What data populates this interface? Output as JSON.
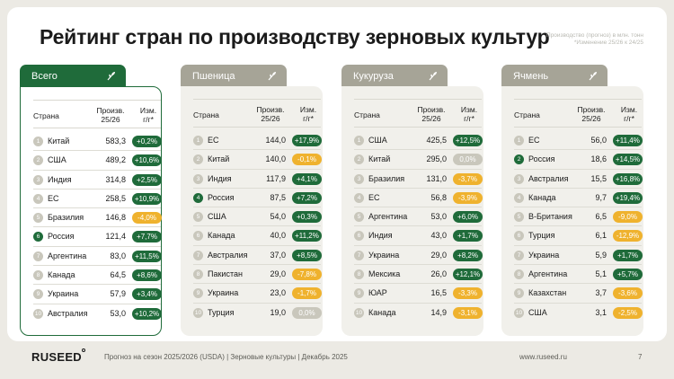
{
  "slide": {
    "title": "Рейтинг стран по производству зерновых культур",
    "note_line1": "Производство (прогноз) в млн. тонн",
    "note_line2": "*Изменение 25/26 к 24/25"
  },
  "headers": {
    "country": "Страна",
    "prod_1": "Произв.",
    "prod_2": "25/26",
    "chg_1": "Изм.",
    "chg_2": "г/г*"
  },
  "colors": {
    "accent": "#1f6b3a",
    "tab_inactive": "#a6a497",
    "negative": "#efb22e",
    "neutral": "#c9c7bc"
  },
  "tables": [
    {
      "name": "Всего",
      "icon": "wheat-icon",
      "active": true,
      "rows": [
        {
          "rank": "1",
          "country": "Китай",
          "value": "583,3",
          "change": "+0,2%",
          "sign": "pos",
          "highlight": false
        },
        {
          "rank": "2",
          "country": "США",
          "value": "489,2",
          "change": "+10,6%",
          "sign": "pos",
          "highlight": false
        },
        {
          "rank": "3",
          "country": "Индия",
          "value": "314,8",
          "change": "+2,5%",
          "sign": "pos",
          "highlight": false
        },
        {
          "rank": "4",
          "country": "ЕС",
          "value": "258,5",
          "change": "+10,9%",
          "sign": "pos",
          "highlight": false
        },
        {
          "rank": "5",
          "country": "Бразилия",
          "value": "146,8",
          "change": "-4,0%",
          "sign": "neg",
          "highlight": false
        },
        {
          "rank": "6",
          "country": "Россия",
          "value": "121,4",
          "change": "+7,7%",
          "sign": "pos",
          "highlight": true
        },
        {
          "rank": "7",
          "country": "Аргентина",
          "value": "83,0",
          "change": "+11,5%",
          "sign": "pos",
          "highlight": false
        },
        {
          "rank": "8",
          "country": "Канада",
          "value": "64,5",
          "change": "+8,6%",
          "sign": "pos",
          "highlight": false
        },
        {
          "rank": "9",
          "country": "Украина",
          "value": "57,9",
          "change": "+3,4%",
          "sign": "pos",
          "highlight": false
        },
        {
          "rank": "10",
          "country": "Австралия",
          "value": "53,0",
          "change": "+10,2%",
          "sign": "pos",
          "highlight": false
        }
      ]
    },
    {
      "name": "Пшеница",
      "icon": "wheat-icon",
      "active": false,
      "rows": [
        {
          "rank": "1",
          "country": "ЕС",
          "value": "144,0",
          "change": "+17,9%",
          "sign": "pos",
          "highlight": false
        },
        {
          "rank": "2",
          "country": "Китай",
          "value": "140,0",
          "change": "-0,1%",
          "sign": "neg",
          "highlight": false
        },
        {
          "rank": "3",
          "country": "Индия",
          "value": "117,9",
          "change": "+4,1%",
          "sign": "pos",
          "highlight": false
        },
        {
          "rank": "4",
          "country": "Россия",
          "value": "87,5",
          "change": "+7,2%",
          "sign": "pos",
          "highlight": true
        },
        {
          "rank": "5",
          "country": "США",
          "value": "54,0",
          "change": "+0,3%",
          "sign": "pos",
          "highlight": false
        },
        {
          "rank": "6",
          "country": "Канада",
          "value": "40,0",
          "change": "+11,2%",
          "sign": "pos",
          "highlight": false
        },
        {
          "rank": "7",
          "country": "Австралия",
          "value": "37,0",
          "change": "+8,5%",
          "sign": "pos",
          "highlight": false
        },
        {
          "rank": "8",
          "country": "Пакистан",
          "value": "29,0",
          "change": "-7,8%",
          "sign": "neg",
          "highlight": false
        },
        {
          "rank": "9",
          "country": "Украина",
          "value": "23,0",
          "change": "-1,7%",
          "sign": "neg",
          "highlight": false
        },
        {
          "rank": "10",
          "country": "Турция",
          "value": "19,0",
          "change": "0,0%",
          "sign": "zero",
          "highlight": false
        }
      ]
    },
    {
      "name": "Кукуруза",
      "icon": "wheat-icon",
      "active": false,
      "rows": [
        {
          "rank": "1",
          "country": "США",
          "value": "425,5",
          "change": "+12,5%",
          "sign": "pos",
          "highlight": false
        },
        {
          "rank": "2",
          "country": "Китай",
          "value": "295,0",
          "change": "0,0%",
          "sign": "zero",
          "highlight": false
        },
        {
          "rank": "3",
          "country": "Бразилия",
          "value": "131,0",
          "change": "-3,7%",
          "sign": "neg",
          "highlight": false
        },
        {
          "rank": "4",
          "country": "ЕС",
          "value": "56,8",
          "change": "-3,9%",
          "sign": "neg",
          "highlight": false
        },
        {
          "rank": "5",
          "country": "Аргентина",
          "value": "53,0",
          "change": "+6,0%",
          "sign": "pos",
          "highlight": false
        },
        {
          "rank": "6",
          "country": "Индия",
          "value": "43,0",
          "change": "+1,7%",
          "sign": "pos",
          "highlight": false
        },
        {
          "rank": "7",
          "country": "Украина",
          "value": "29,0",
          "change": "+8,2%",
          "sign": "pos",
          "highlight": false
        },
        {
          "rank": "8",
          "country": "Мексика",
          "value": "26,0",
          "change": "+12,1%",
          "sign": "pos",
          "highlight": false
        },
        {
          "rank": "9",
          "country": "ЮАР",
          "value": "16,5",
          "change": "-3,3%",
          "sign": "neg",
          "highlight": false
        },
        {
          "rank": "10",
          "country": "Канада",
          "value": "14,9",
          "change": "-3,1%",
          "sign": "neg",
          "highlight": false
        }
      ]
    },
    {
      "name": "Ячмень",
      "icon": "wheat-icon",
      "active": false,
      "rows": [
        {
          "rank": "1",
          "country": "ЕС",
          "value": "56,0",
          "change": "+11,4%",
          "sign": "pos",
          "highlight": false
        },
        {
          "rank": "2",
          "country": "Россия",
          "value": "18,6",
          "change": "+14,5%",
          "sign": "pos",
          "highlight": true
        },
        {
          "rank": "3",
          "country": "Австралия",
          "value": "15,5",
          "change": "+16,8%",
          "sign": "pos",
          "highlight": false
        },
        {
          "rank": "4",
          "country": "Канада",
          "value": "9,7",
          "change": "+19,4%",
          "sign": "pos",
          "highlight": false
        },
        {
          "rank": "5",
          "country": "В-Британия",
          "value": "6,5",
          "change": "-9,0%",
          "sign": "neg",
          "highlight": false
        },
        {
          "rank": "6",
          "country": "Турция",
          "value": "6,1",
          "change": "-12,9%",
          "sign": "neg",
          "highlight": false
        },
        {
          "rank": "7",
          "country": "Украина",
          "value": "5,9",
          "change": "+1,7%",
          "sign": "pos",
          "highlight": false
        },
        {
          "rank": "8",
          "country": "Аргентина",
          "value": "5,1",
          "change": "+5,7%",
          "sign": "pos",
          "highlight": false
        },
        {
          "rank": "9",
          "country": "Казахстан",
          "value": "3,7",
          "change": "-3,6%",
          "sign": "neg",
          "highlight": false
        },
        {
          "rank": "10",
          "country": "США",
          "value": "3,1",
          "change": "-2,5%",
          "sign": "neg",
          "highlight": false
        }
      ]
    }
  ],
  "footer": {
    "logo": "RUSEED",
    "text": "Прогноз на сезон 2025/2026 (USDA)  |  Зерновые культуры  |  Декабрь 2025",
    "url": "www.ruseed.ru",
    "page": "7"
  }
}
